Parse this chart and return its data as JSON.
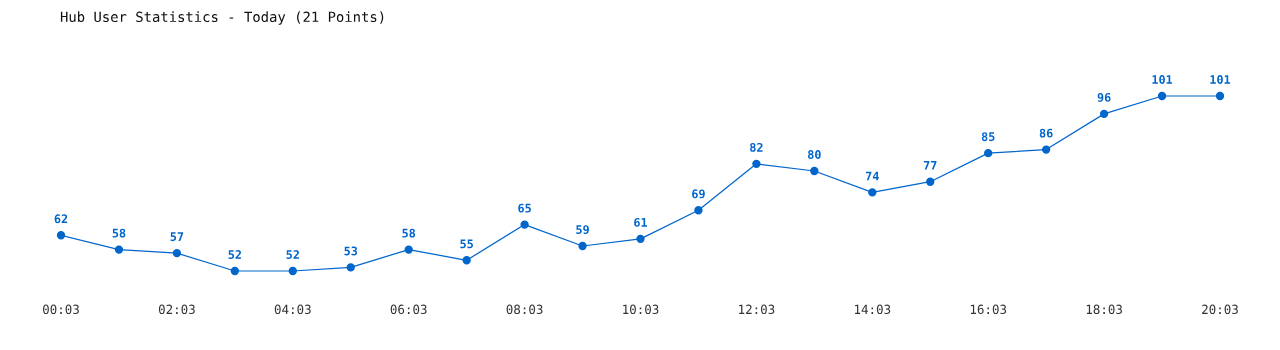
{
  "chart_data": {
    "type": "line",
    "title": "Hub User Statistics - Today (21 Points)",
    "categories": [
      "00:03",
      null,
      "02:03",
      null,
      "04:03",
      null,
      "06:03",
      null,
      "08:03",
      null,
      "10:03",
      null,
      "12:03",
      null,
      "14:03",
      null,
      "16:03",
      null,
      "18:03",
      null,
      "20:03"
    ],
    "series": [
      {
        "color": "#0066cc",
        "values": [
          62,
          58,
          57,
          52,
          52,
          53,
          58,
          55,
          65,
          59,
          61,
          69,
          82,
          80,
          74,
          77,
          85,
          86,
          96,
          101,
          101
        ]
      }
    ],
    "data_labels": true,
    "marker": "circle",
    "grid": false,
    "legend": false
  }
}
